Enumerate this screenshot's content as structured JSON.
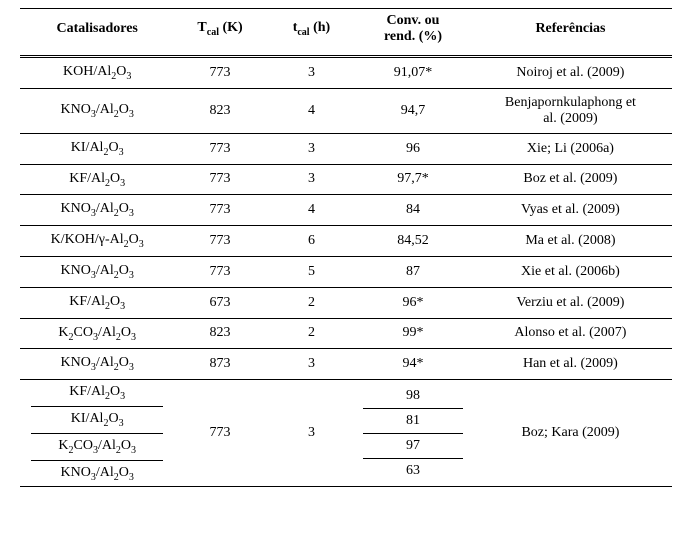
{
  "header": {
    "catalyst": "Catalisadores",
    "tcal": "T",
    "tcal_sub": "cal",
    "tcal_unit": " (K)",
    "ttime": "t",
    "ttime_sub": "cal",
    "ttime_unit": " (h)",
    "conv_line1": "Conv. ou",
    "conv_line2": "rend. (%)",
    "ref": "Referências"
  },
  "rows": [
    {
      "cat_a": "KOH/Al",
      "cat_b": "O",
      "t": "773",
      "h": "3",
      "conv": "91,07*",
      "ref": "Noiroj et al. (2009)"
    },
    {
      "cat_a": "KNO",
      "cat_a2": "/Al",
      "cat_b": "O",
      "t": "823",
      "h": "4",
      "conv": "94,7",
      "ref1": "Benjapornkulaphong et",
      "ref2": "al. (2009)"
    },
    {
      "cat_a": "KI/Al",
      "cat_b": "O",
      "t": "773",
      "h": "3",
      "conv": "96",
      "ref": "Xie; Li (2006a)"
    },
    {
      "cat_a": "KF/Al",
      "cat_b": "O",
      "t": "773",
      "h": "3",
      "conv": "97,7*",
      "ref": "Boz et al. (2009)"
    },
    {
      "cat_a": "KNO",
      "cat_a2": "/Al",
      "cat_b": "O",
      "t": "773",
      "h": "4",
      "conv": "84",
      "ref": "Vyas et al. (2009)"
    },
    {
      "cat_a": "K/KOH/γ-Al",
      "cat_b": "O",
      "t": "773",
      "h": "6",
      "conv": "84,52",
      "ref": "Ma et al. (2008)"
    },
    {
      "cat_a": "KNO",
      "cat_a2": "/Al",
      "cat_b": "O",
      "t": "773",
      "h": "5",
      "conv": "87",
      "ref": "Xie et al. (2006b)"
    },
    {
      "cat_a": "KF/Al",
      "cat_b": "O",
      "t": "673",
      "h": "2",
      "conv": "96*",
      "ref": "Verziu et al. (2009)"
    },
    {
      "cat_a": "K",
      "cat_a2": "CO",
      "cat_a3": "/Al",
      "cat_b": "O",
      "t": "823",
      "h": "2",
      "conv": "99*",
      "ref": "Alonso et al. (2007)"
    },
    {
      "cat_a": "KNO",
      "cat_a2": "/Al",
      "cat_b": "O",
      "t": "873",
      "h": "3",
      "conv": "94*",
      "ref": "Han et al. (2009)"
    }
  ],
  "group": {
    "t": "773",
    "h": "3",
    "ref": "Boz; Kara (2009)",
    "items": [
      {
        "cat_a": "KF/Al",
        "cat_b": "O",
        "conv": "98"
      },
      {
        "cat_a": "KI/Al",
        "cat_b": "O",
        "conv": "81"
      },
      {
        "cat_a": "K",
        "cat_a2": "CO",
        "cat_a3": "/Al",
        "cat_b": "O",
        "conv": "97"
      },
      {
        "cat_a": "KNO",
        "cat_a2": "/Al",
        "cat_b": "O",
        "conv": "63"
      }
    ]
  },
  "sub": {
    "2": "2",
    "3": "3"
  }
}
